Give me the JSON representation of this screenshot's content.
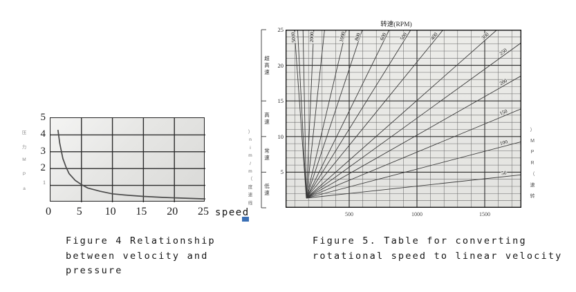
{
  "figure4": {
    "y_axis_vertical_label": "压力MPa",
    "y_ticks": [
      "5",
      "4",
      "3",
      "2",
      "1"
    ],
    "x_ticks": [
      "0",
      "5",
      "10",
      "15",
      "20",
      "25"
    ],
    "x_axis_suffix": "speed",
    "caption_lines": [
      "Figure 4 Relationship",
      "between velocity and",
      "pressure"
    ]
  },
  "figure5": {
    "top_title": "转速(RPM)",
    "left_vertical_label": "线速度（m/min）",
    "right_vertical_label": "转速（RPM）",
    "speed_zones": [
      "超高速",
      "高速",
      "常速",
      "低速"
    ],
    "y_ticks": [
      "25",
      "20",
      "15",
      "10",
      "5"
    ],
    "x_ticks": [
      "500",
      "1000",
      "1500"
    ],
    "caption_lines": [
      "Figure 5. Table for converting",
      "rotational speed to linear velocity"
    ]
  },
  "chart_data": [
    {
      "type": "line",
      "title": "Figure 4 Relationship between velocity and pressure",
      "xlabel": "speed",
      "ylabel": "压力MPa",
      "xlim": [
        0,
        25
      ],
      "ylim": [
        0,
        5
      ],
      "grid": true,
      "x": [
        1.2,
        1.5,
        2,
        2.5,
        3,
        4,
        5,
        6,
        8,
        10,
        12,
        15,
        18,
        21,
        25
      ],
      "y": [
        4.3,
        3.5,
        2.6,
        2.1,
        1.7,
        1.3,
        1.05,
        0.85,
        0.65,
        0.5,
        0.43,
        0.35,
        0.29,
        0.25,
        0.2
      ]
    },
    {
      "type": "line",
      "title": "转速(RPM)",
      "ylabel": "线速度（m/min）",
      "right_axis_label": "转速（RPM）",
      "xlim": [
        0,
        1770
      ],
      "ylim": [
        0,
        25
      ],
      "x_ticks": [
        500,
        1000,
        1500
      ],
      "y_ticks": [
        25,
        20,
        15,
        10,
        5
      ],
      "minor_grid_x_step": 100,
      "minor_grid_y_step": 1,
      "speed_zones": [
        {
          "label": "超高速",
          "from": 15,
          "to": 25
        },
        {
          "label": "高速",
          "from": 10,
          "to": 15
        },
        {
          "label": "常速",
          "from": 5,
          "to": 10
        },
        {
          "label": "低速",
          "from": 0,
          "to": 5
        }
      ],
      "rpm_lines": [
        {
          "rpm": 5000,
          "labeled": true
        },
        {
          "rpm": 4000,
          "labeled": false
        },
        {
          "rpm": 3000,
          "labeled": false
        },
        {
          "rpm": 2000,
          "labeled": true
        },
        {
          "rpm": 1500,
          "labeled": false
        },
        {
          "rpm": 1000,
          "labeled": true
        },
        {
          "rpm": 800,
          "labeled": true
        },
        {
          "rpm": 600,
          "labeled": true
        },
        {
          "rpm": 500,
          "labeled": true
        },
        {
          "rpm": 400,
          "labeled": true
        },
        {
          "rpm": 300,
          "labeled": true
        },
        {
          "rpm": 250,
          "labeled": true
        },
        {
          "rpm": 200,
          "labeled": true
        },
        {
          "rpm": 150,
          "labeled": true
        },
        {
          "rpm": 100,
          "labeled": true
        },
        {
          "rpm": 50,
          "labeled": true
        }
      ]
    }
  ],
  "colors": {
    "grid_major": "#2b2b2b",
    "grid_minor": "#6a6a6a",
    "curve": "#4a4a4a",
    "rpm_line": "#3a3a3a",
    "plot_border": "#111111",
    "text": "#1a1a1a",
    "muted": "#555555",
    "artifact_blue": "#3a6fb5"
  }
}
